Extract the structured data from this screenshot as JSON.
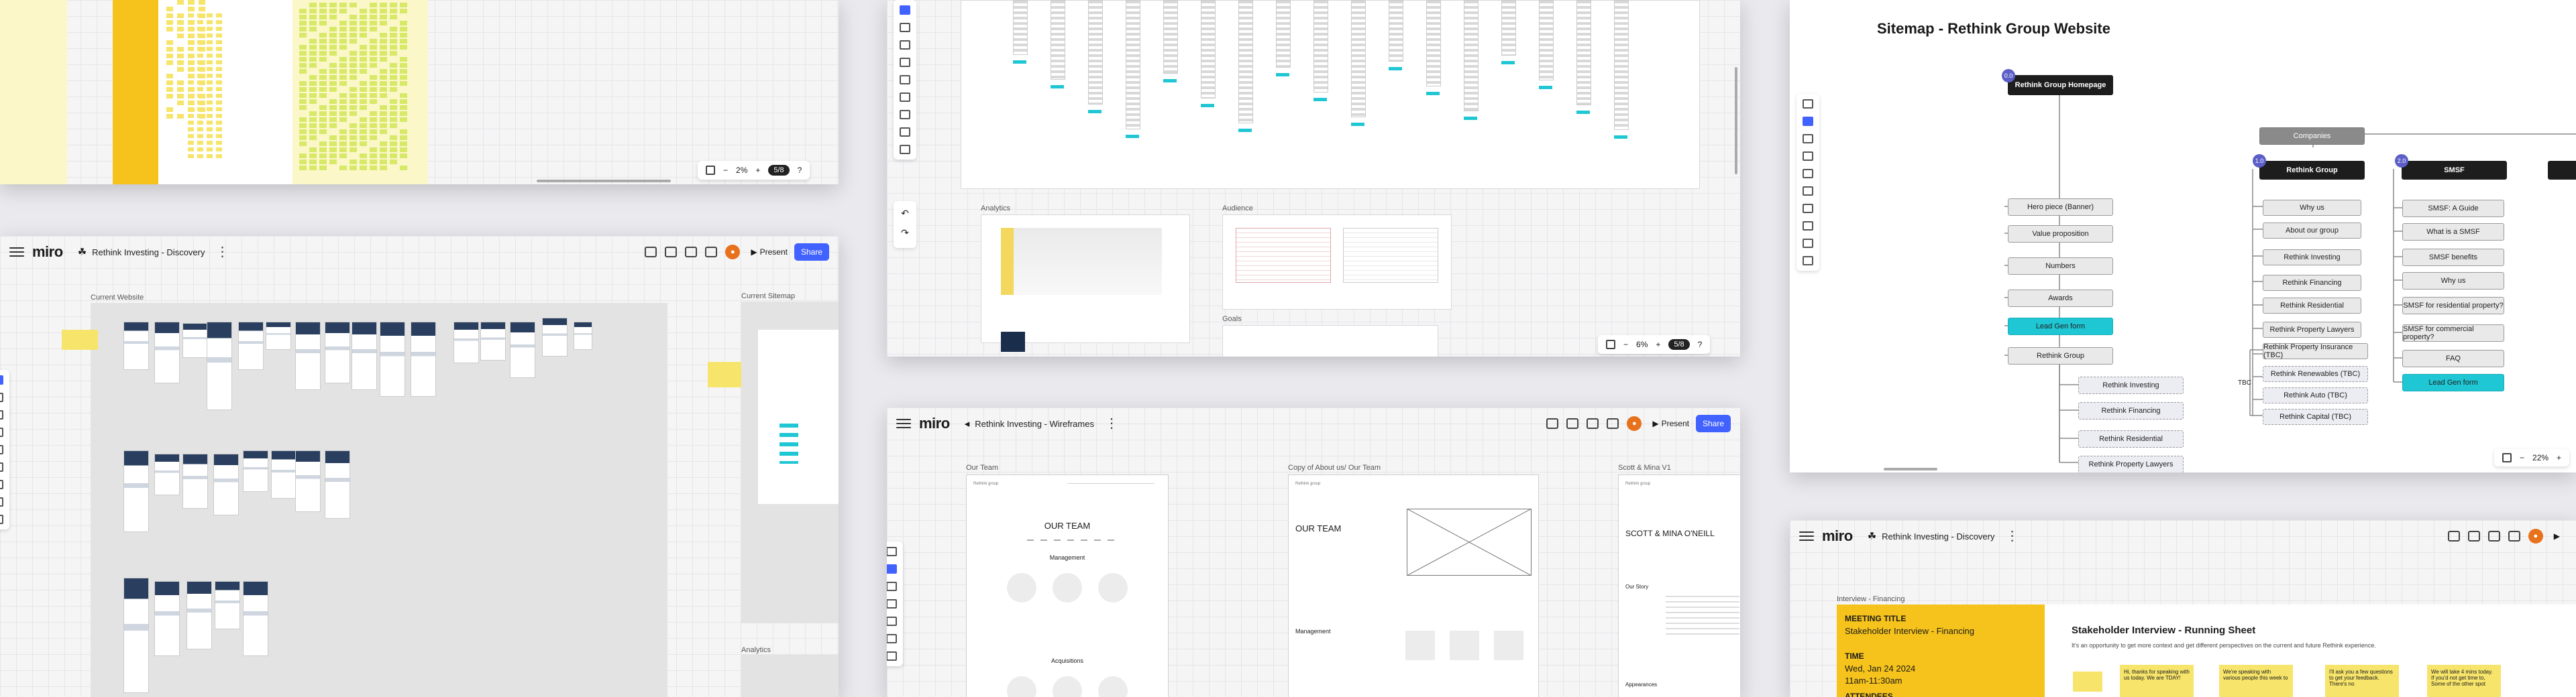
{
  "windows": {
    "tl": {
      "zoom": "2%",
      "page": "5/8"
    },
    "tm": {
      "zoom": "6%",
      "page": "5/8",
      "frames": {
        "analytics": "Analytics",
        "audience": "Audience",
        "goals": "Goals"
      }
    },
    "ml": {
      "logo": "miro",
      "title": "Rethink Investing - Discovery",
      "present": "Present",
      "share": "Share",
      "frames": {
        "current_website": "Current Website",
        "current_sitemap": "Current Sitemap",
        "analytics": "Analytics"
      }
    },
    "sitemap": {
      "title": "Sitemap - Rethink Group Website",
      "zoom": "22%",
      "nodes": {
        "homepage": "Rethink Group Homepage",
        "hero": "Hero piece (Banner)",
        "value": "Value proposition",
        "numbers": "Numbers",
        "awards": "Awards",
        "lead_gen": "Lead Gen form",
        "rethink_group": "Rethink Group",
        "investing": "Rethink Investing",
        "financing": "Rethink Financing",
        "residential": "Rethink Residential",
        "lawyers": "Rethink Property Lawyers",
        "companies": "Companies",
        "why_us": "Why us",
        "about": "About our group",
        "tbc": "TBC",
        "insurance": "Rethink Property Insurance (TBC)",
        "renewables": "Rethink Renewables (TBC)",
        "auto": "Rethink Auto (TBC)",
        "capital": "Rethink Capital (TBC)",
        "smsf": "SMSF",
        "smsf_guide": "SMSF: A Guide",
        "what_smsf": "What is a SMSF",
        "smsf_benefits": "SMSF benefits",
        "smsf_res": "SMSF for residential property?",
        "smsf_com": "SMSF for commercial property?",
        "faq": "FAQ"
      },
      "badges": {
        "homepage": "0.0",
        "rethink_group": "1.0",
        "smsf": "2.0"
      }
    },
    "wire": {
      "logo": "miro",
      "title": "Rethink Investing - Wireframes",
      "present": "Present",
      "share": "Share",
      "frames": {
        "our_team": "Our Team",
        "copy_about": "Copy of About us/ Our Team",
        "scott": "Scott & Mina V1"
      },
      "cards": {
        "a_heading": "OUR TEAM",
        "a_management": "Management",
        "a_acquisitions": "Acquisitions",
        "b_heading": "OUR TEAM",
        "b_management": "Management",
        "c_heading": "SCOTT & MINA O'NEILL",
        "c_story": "Our Story",
        "c_appearances": "Appearances",
        "brand": "Rethink group"
      }
    },
    "stake": {
      "logo": "miro",
      "title": "Rethink Investing - Discovery",
      "frame_label": "Interview - Financing",
      "meeting_title_label": "MEETING TITLE",
      "meeting_title": "Stakeholder Interview - Financing",
      "time_label": "TIME",
      "time_date": "Wed, Jan 24 2024",
      "time_range": "11am-11:30am",
      "attendees_label": "ATTENDEES",
      "sheet_title": "Stakeholder Interview - Running Sheet",
      "sheet_sub": "It's an opportunity to get more context and get different perspectives on the current and future Rethink experience.",
      "notes": [
        "Hi, thanks for speaking with us today. We are TDAY!",
        "We're speaking with various people this week to",
        "I'll ask you a few questions to get your feedback. There's no",
        "We will take 4 mins today. If you'd not get time to, Some of the other spot"
      ]
    }
  },
  "colors": {
    "accent": "#4262ff",
    "cyan": "#1fc6d3",
    "sticky": "#f6e46b",
    "yellow_bar": "#f6c31c",
    "badge": "#5b5fc7"
  }
}
